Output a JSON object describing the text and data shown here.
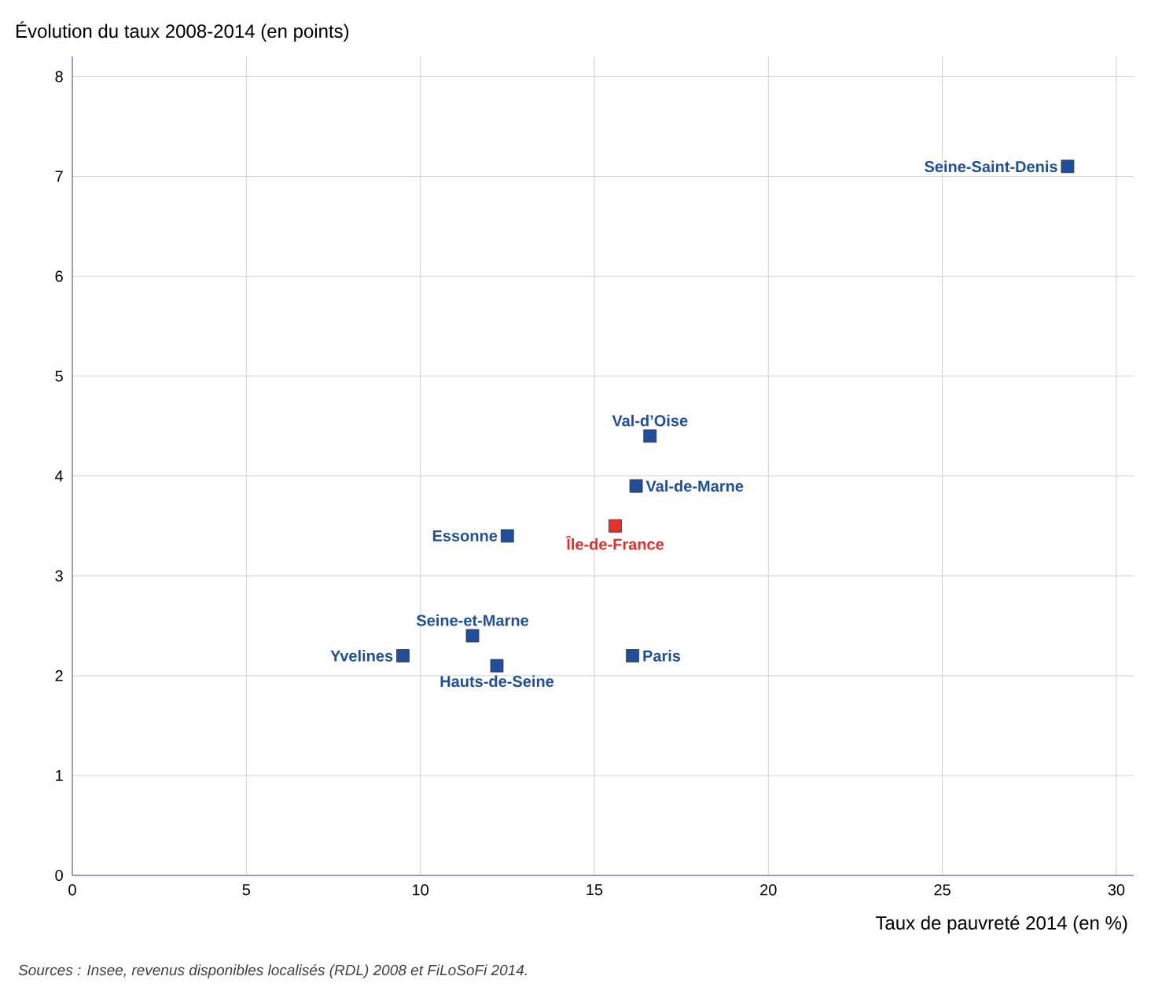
{
  "chart_data": {
    "type": "scatter",
    "ylabel": "Évolution du taux 2008-2014 (en points)",
    "xlabel": "Taux de pauvreté 2014 (en %)",
    "annotations": [
      "Sources : Insee, revenus disponibles localisés (RDL) 2008 et FiLoSoFi 2014."
    ],
    "xlim": [
      0,
      30.5
    ],
    "ylim": [
      0,
      8.2
    ],
    "xticks": [
      0,
      5,
      10,
      15,
      20,
      25,
      30
    ],
    "yticks": [
      0,
      1,
      2,
      3,
      4,
      5,
      6,
      7,
      8
    ],
    "grid": true,
    "marker": "square",
    "series": [
      {
        "name": "Seine-Saint-Denis",
        "color": "#1f4e9c",
        "x": [
          28.6
        ],
        "values": [
          7.1
        ]
      },
      {
        "name": "Val-d’Oise",
        "color": "#1f4e9c",
        "x": [
          16.6
        ],
        "values": [
          4.4
        ]
      },
      {
        "name": "Val-de-Marne",
        "color": "#1f4e9c",
        "x": [
          16.2
        ],
        "values": [
          3.9
        ]
      },
      {
        "name": "Île-de-France",
        "color": "#e8302a",
        "x": [
          15.6
        ],
        "values": [
          3.5
        ]
      },
      {
        "name": "Essonne",
        "color": "#1f4e9c",
        "x": [
          12.5
        ],
        "values": [
          3.4
        ]
      },
      {
        "name": "Seine-et-Marne",
        "color": "#1f4e9c",
        "x": [
          11.5
        ],
        "values": [
          2.4
        ]
      },
      {
        "name": "Yvelines",
        "color": "#1f4e9c",
        "x": [
          9.5
        ],
        "values": [
          2.2
        ]
      },
      {
        "name": "Hauts-de-Seine",
        "color": "#1f4e9c",
        "x": [
          12.2
        ],
        "values": [
          2.1
        ]
      },
      {
        "name": "Paris",
        "color": "#1f4e9c",
        "x": [
          16.1
        ],
        "values": [
          2.2
        ]
      }
    ]
  }
}
